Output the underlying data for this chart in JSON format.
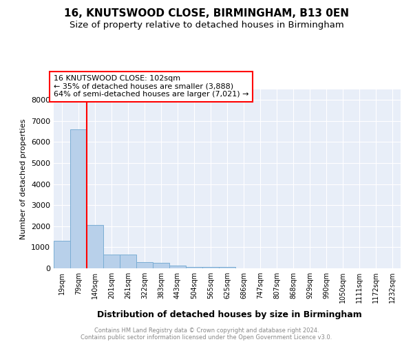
{
  "title1": "16, KNUTSWOOD CLOSE, BIRMINGHAM, B13 0EN",
  "title2": "Size of property relative to detached houses in Birmingham",
  "xlabel": "Distribution of detached houses by size in Birmingham",
  "ylabel": "Number of detached properties",
  "categories": [
    "19sqm",
    "79sqm",
    "140sqm",
    "201sqm",
    "261sqm",
    "322sqm",
    "383sqm",
    "443sqm",
    "504sqm",
    "565sqm",
    "625sqm",
    "686sqm",
    "747sqm",
    "807sqm",
    "868sqm",
    "929sqm",
    "990sqm",
    "1050sqm",
    "1111sqm",
    "1172sqm",
    "1232sqm"
  ],
  "values": [
    1300,
    6600,
    2060,
    670,
    640,
    280,
    260,
    120,
    75,
    50,
    55,
    0,
    0,
    0,
    0,
    0,
    0,
    0,
    0,
    0,
    0
  ],
  "bar_color": "#b8d0ea",
  "bar_edgecolor": "#7aadd4",
  "vline_x_index": 1.5,
  "vline_color": "red",
  "annotation_text": "16 KNUTSWOOD CLOSE: 102sqm\n← 35% of detached houses are smaller (3,888)\n64% of semi-detached houses are larger (7,021) →",
  "annotation_box_color": "white",
  "annotation_box_edgecolor": "red",
  "ylim": [
    0,
    8500
  ],
  "yticks": [
    0,
    1000,
    2000,
    3000,
    4000,
    5000,
    6000,
    7000,
    8000
  ],
  "footer1": "Contains HM Land Registry data © Crown copyright and database right 2024.",
  "footer2": "Contains public sector information licensed under the Open Government Licence v3.0.",
  "bg_color": "#e8eef8",
  "title1_fontsize": 11,
  "title2_fontsize": 9.5,
  "xlabel_fontsize": 9,
  "ylabel_fontsize": 8
}
